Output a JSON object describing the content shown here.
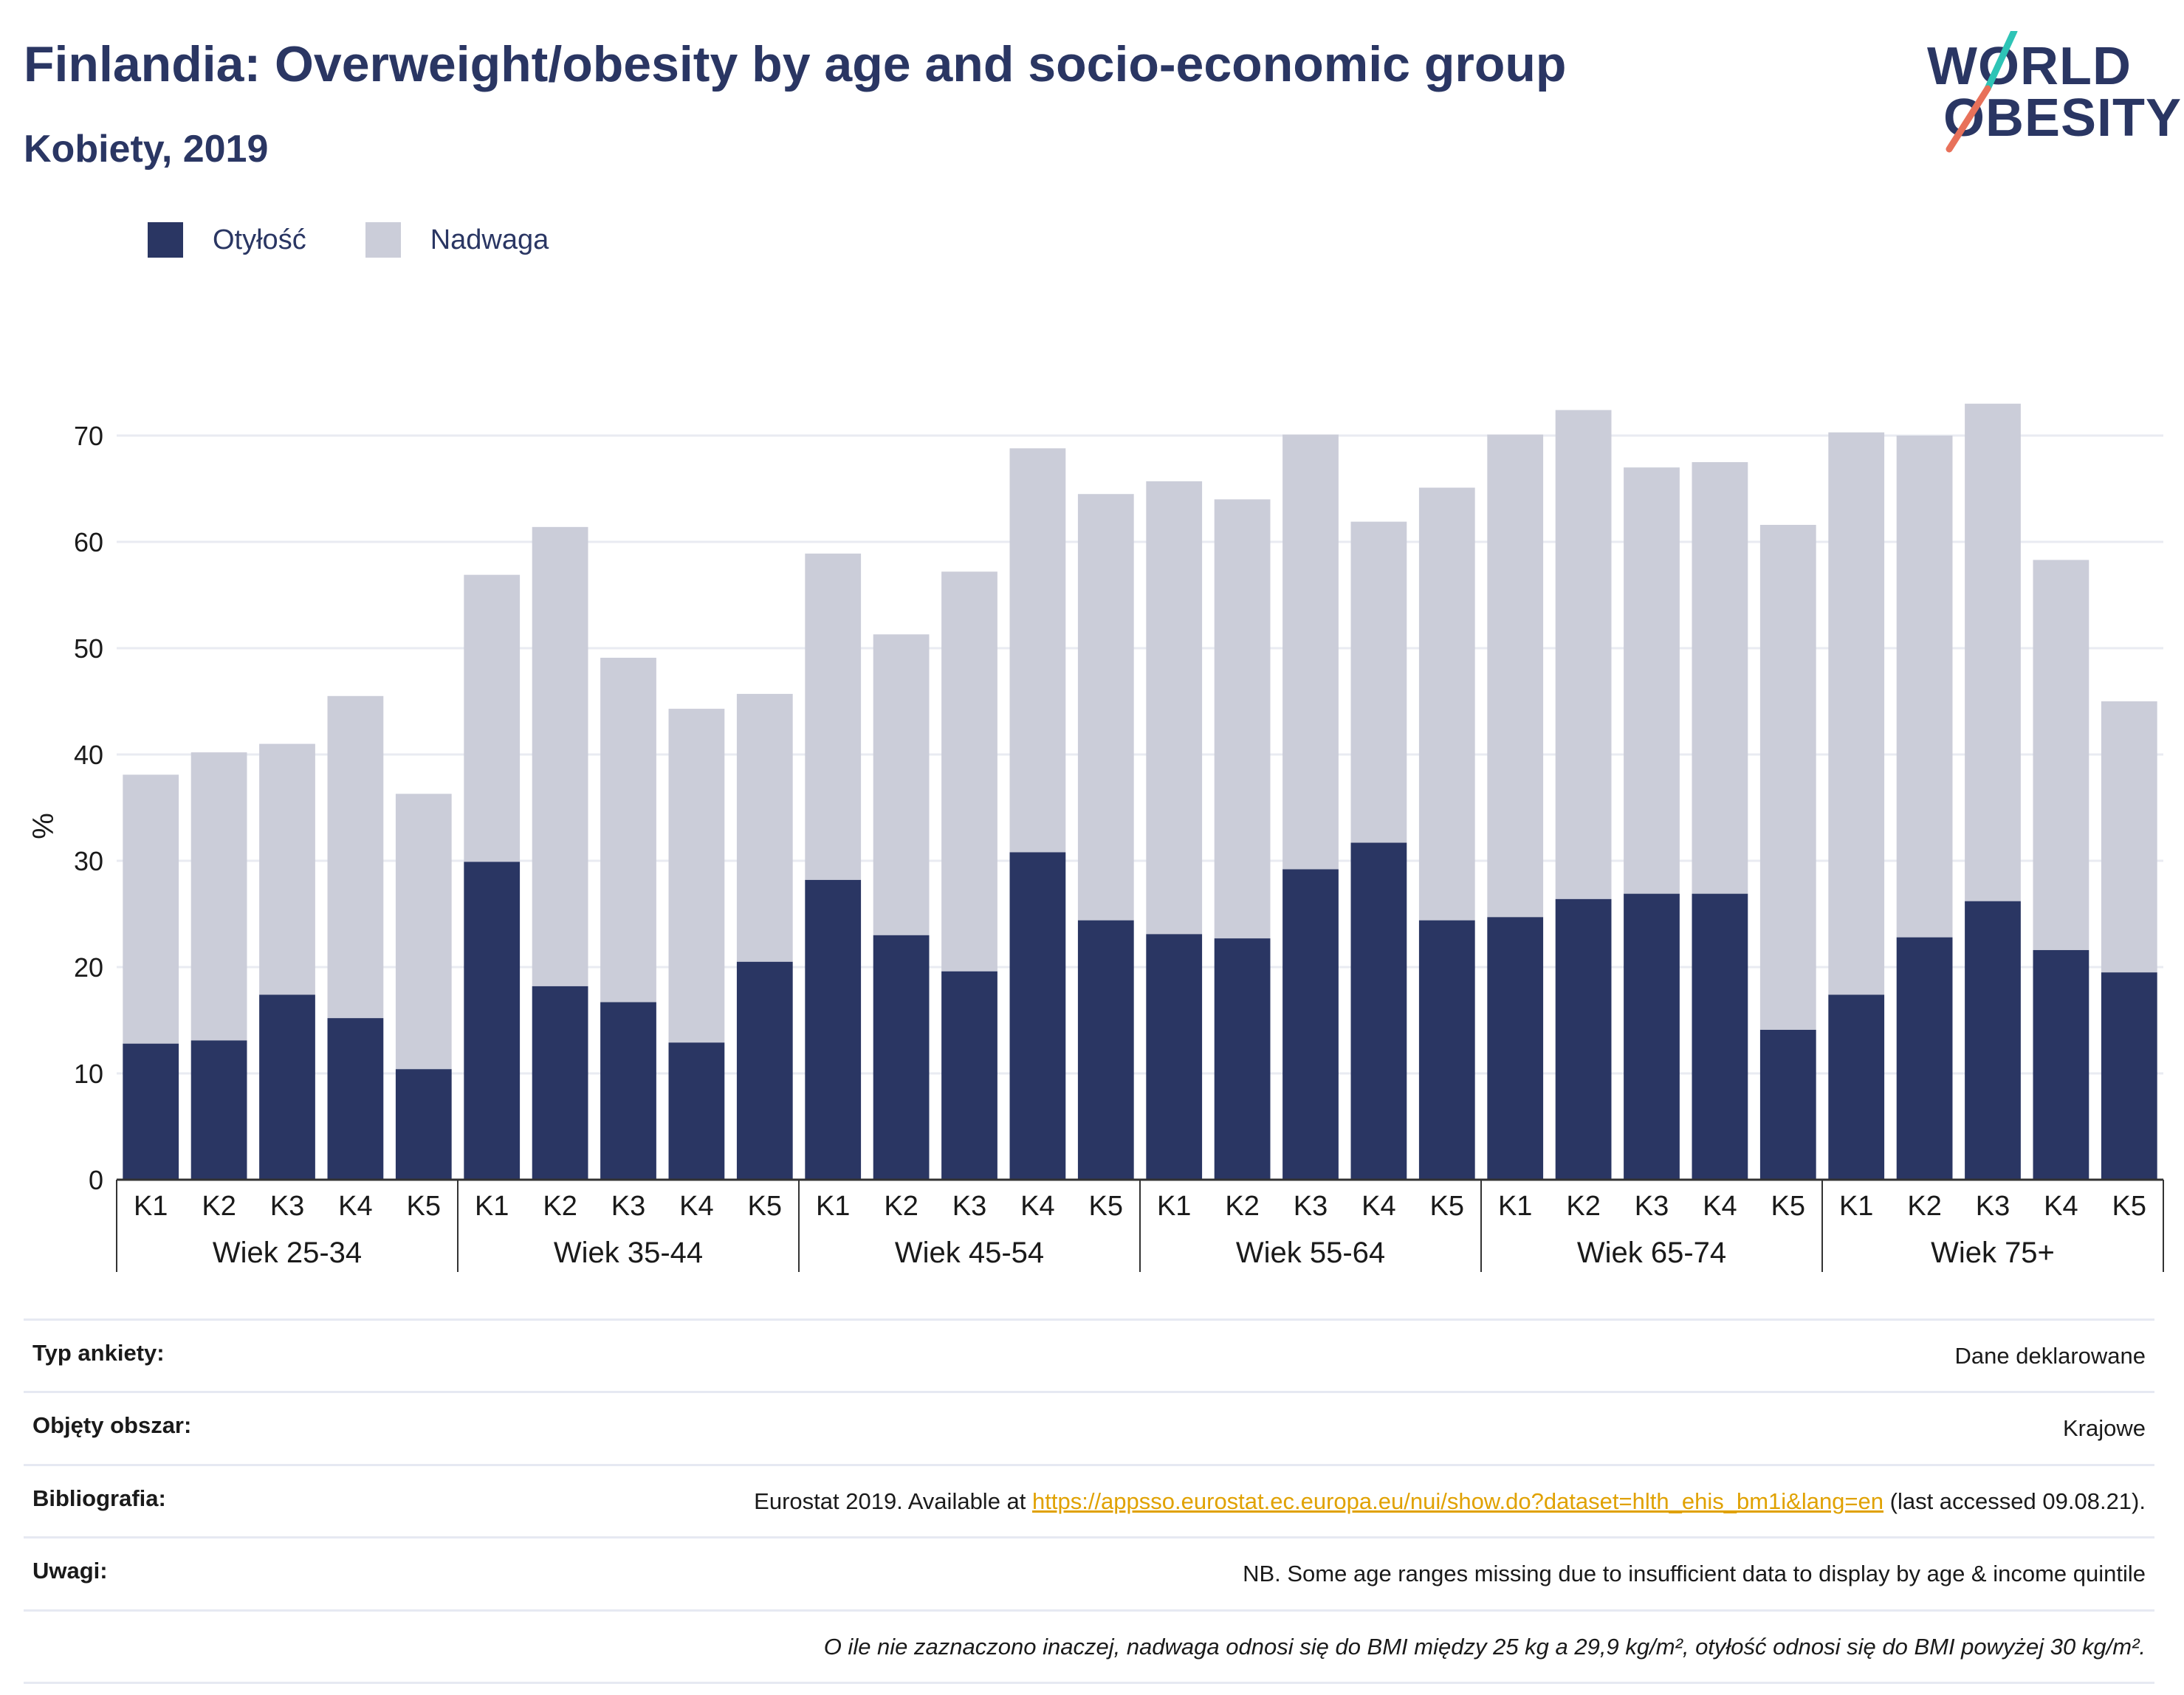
{
  "header": {
    "title": "Finlandia: Overweight/obesity by age and socio-economic group",
    "subtitle": "Kobiety, 2019"
  },
  "logo": {
    "line1": "WORLD",
    "line2": "OBESITY",
    "accent1": "#2ec4b6",
    "accent2": "#e8715a"
  },
  "colors": {
    "obesity": "#2a3663",
    "overweight": "#cbcdd9",
    "grid": "#e9ebf2",
    "axis": "#333333"
  },
  "chart_data": {
    "type": "bar",
    "stacked": true,
    "ylabel": "%",
    "ylim": [
      0,
      75
    ],
    "yticks": [
      0,
      10,
      20,
      30,
      40,
      50,
      60,
      70
    ],
    "grid": true,
    "legend": {
      "placement": "top-left",
      "entries": [
        "Otyłość",
        "Nadwaga"
      ]
    },
    "groups": [
      {
        "label": "Wiek 25-34",
        "categories": [
          "K1",
          "K2",
          "K3",
          "K4",
          "K5"
        ],
        "obesity": [
          12.8,
          13.1,
          17.4,
          15.2,
          10.4
        ],
        "total": [
          38.1,
          40.2,
          41.0,
          45.5,
          36.3
        ]
      },
      {
        "label": "Wiek 35-44",
        "categories": [
          "K1",
          "K2",
          "K3",
          "K4",
          "K5"
        ],
        "obesity": [
          29.9,
          18.2,
          16.7,
          12.9,
          20.5
        ],
        "total": [
          56.9,
          61.4,
          49.1,
          44.3,
          45.7
        ]
      },
      {
        "label": "Wiek 45-54",
        "categories": [
          "K1",
          "K2",
          "K3",
          "K4",
          "K5"
        ],
        "obesity": [
          28.2,
          23.0,
          19.6,
          30.8,
          24.4
        ],
        "total": [
          58.9,
          51.3,
          57.2,
          68.8,
          64.5
        ]
      },
      {
        "label": "Wiek 55-64",
        "categories": [
          "K1",
          "K2",
          "K3",
          "K4",
          "K5"
        ],
        "obesity": [
          23.1,
          22.7,
          29.2,
          31.7,
          24.4
        ],
        "total": [
          65.7,
          64.0,
          70.1,
          61.9,
          65.1
        ]
      },
      {
        "label": "Wiek 65-74",
        "categories": [
          "K1",
          "K2",
          "K3",
          "K4",
          "K5"
        ],
        "obesity": [
          24.7,
          26.4,
          26.9,
          26.9,
          14.1
        ],
        "total": [
          70.1,
          72.4,
          67.0,
          67.5,
          61.6
        ]
      },
      {
        "label": "Wiek 75+",
        "categories": [
          "K1",
          "K2",
          "K3",
          "K4",
          "K5"
        ],
        "obesity": [
          17.4,
          22.8,
          26.2,
          21.6,
          19.5
        ],
        "total": [
          70.3,
          70.0,
          73.0,
          58.3,
          45.0
        ]
      }
    ]
  },
  "meta": {
    "survey_label": "Typ ankiety:",
    "survey_value": "Dane deklarowane",
    "area_label": "Objęty obszar:",
    "area_value": "Krajowe",
    "biblio_label": "Bibliografia:",
    "biblio_prefix": "Eurostat 2019. Available at ",
    "biblio_link": "https://appsso.eurostat.ec.europa.eu/nui/show.do?dataset=hlth_ehis_bm1i&lang=en",
    "biblio_suffix": " (last accessed 09.08.21).",
    "notes_label": "Uwagi:",
    "notes_value": "NB. Some age ranges missing due to insufficient data to display by age & income quintile",
    "definition": "O ile nie zaznaczono inaczej, nadwaga odnosi się do BMI między 25 kg a 29,9 kg/m², otyłość odnosi się do BMI powyżej 30 kg/m²."
  }
}
